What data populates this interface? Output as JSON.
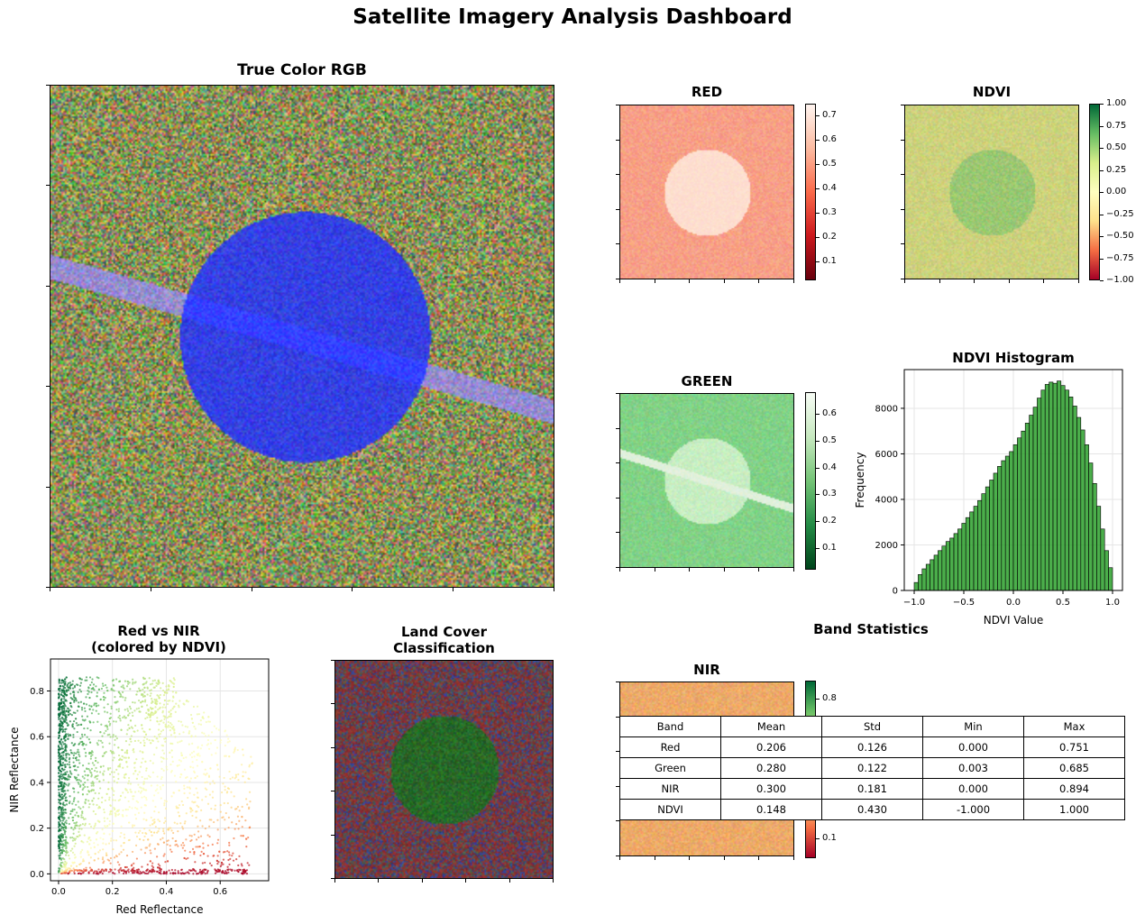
{
  "title": "Satellite Imagery Analysis Dashboard",
  "panels": {
    "rgb": {
      "title": "True Color RGB"
    },
    "red": {
      "title": "RED",
      "colorbar_ticks": [
        "0.7",
        "0.6",
        "0.5",
        "0.4",
        "0.3",
        "0.2",
        "0.1"
      ],
      "colors": [
        "#fff5f0",
        "#fcbba1",
        "#fb6a4a",
        "#cb181d",
        "#67000d"
      ]
    },
    "ndvi": {
      "title": "NDVI",
      "colorbar_ticks": [
        "1.00",
        "0.75",
        "0.50",
        "0.25",
        "0.00",
        "−0.25",
        "−0.50",
        "−0.75",
        "−1.00"
      ],
      "colors": [
        "#006837",
        "#66bd63",
        "#d9ef8b",
        "#ffffbf",
        "#fee08b",
        "#f46d43",
        "#a50026"
      ]
    },
    "green": {
      "title": "GREEN",
      "colorbar_ticks": [
        "0.6",
        "0.5",
        "0.4",
        "0.3",
        "0.2",
        "0.1"
      ],
      "colors": [
        "#f7fcf5",
        "#c7e9c0",
        "#74c476",
        "#238b45",
        "#00441b"
      ]
    },
    "nir": {
      "title": "NIR",
      "colorbar_ticks": [
        "0.8",
        "0.1"
      ]
    },
    "landcover": {
      "title_line1": "Land Cover",
      "title_line2": "Classification"
    }
  },
  "stats_title": "Band Statistics",
  "stats_table": {
    "headers": [
      "Band",
      "Mean",
      "Std",
      "Min",
      "Max"
    ],
    "rows": [
      [
        "Red",
        "0.206",
        "0.126",
        "0.000",
        "0.751"
      ],
      [
        "Green",
        "0.280",
        "0.122",
        "0.003",
        "0.685"
      ],
      [
        "NIR",
        "0.300",
        "0.181",
        "0.000",
        "0.894"
      ],
      [
        "NDVI",
        "0.148",
        "0.430",
        "-1.000",
        "1.000"
      ]
    ]
  },
  "chart_data": [
    {
      "type": "bar",
      "title": "NDVI Histogram",
      "xlabel": "NDVI Value",
      "ylabel": "Frequency",
      "xlim": [
        -1.1,
        1.1
      ],
      "ylim": [
        0,
        9700
      ],
      "xticks": [
        "−1.0",
        "−0.5",
        "0.0",
        "0.5",
        "1.0"
      ],
      "yticks": [
        "0",
        "2000",
        "4000",
        "6000",
        "8000"
      ],
      "grid": true,
      "bar_color": "#2ca02c",
      "bin_start": -1.0,
      "bin_width": 0.04,
      "values": [
        350,
        700,
        950,
        1150,
        1350,
        1550,
        1750,
        1950,
        2150,
        2300,
        2500,
        2700,
        2950,
        3200,
        3450,
        3700,
        3950,
        4250,
        4550,
        4850,
        5150,
        5450,
        5700,
        5900,
        6100,
        6400,
        6700,
        7000,
        7350,
        7700,
        8050,
        8450,
        8800,
        9050,
        9150,
        9100,
        9200,
        9000,
        8800,
        8500,
        8100,
        7600,
        7050,
        6400,
        5600,
        4700,
        3700,
        2700,
        1750,
        1000
      ]
    },
    {
      "type": "scatter",
      "title_line1": "Red vs NIR",
      "title_line2": "(colored by NDVI)",
      "xlabel": "Red Reflectance",
      "ylabel": "NIR Reflectance",
      "xlim": [
        -0.03,
        0.78
      ],
      "ylim": [
        -0.03,
        0.94
      ],
      "xticks": [
        "0.0",
        "0.2",
        "0.4",
        "0.6"
      ],
      "yticks": [
        "0.0",
        "0.2",
        "0.4",
        "0.6",
        "0.8"
      ],
      "grid": true,
      "colormap": "RdYlGn"
    }
  ]
}
